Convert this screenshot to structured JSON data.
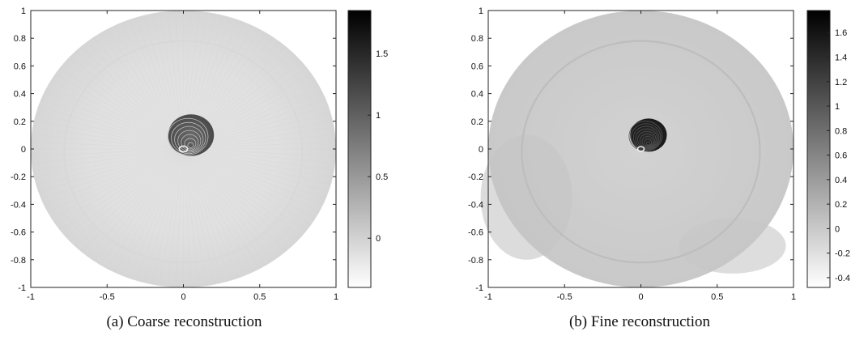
{
  "chart_data": [
    {
      "type": "heatmap",
      "caption": "(a) Coarse reconstruction",
      "xlim": [
        -1,
        1
      ],
      "ylim": [
        -1,
        1
      ],
      "x_ticks": [
        -1,
        -0.5,
        0,
        0.5,
        1
      ],
      "x_tick_labels": [
        "-1",
        "-0.5",
        "0",
        "0.5",
        "1"
      ],
      "y_ticks": [
        -1,
        -0.8,
        -0.6,
        -0.4,
        -0.2,
        0,
        0.2,
        0.4,
        0.6,
        0.8,
        1
      ],
      "y_tick_labels": [
        "-1",
        "-0.8",
        "-0.6",
        "-0.4",
        "-0.2",
        "0",
        "0.2",
        "0.4",
        "0.6",
        "0.8",
        "1"
      ],
      "domain": {
        "shape": "disk",
        "center": [
          0,
          0
        ],
        "radius": 1
      },
      "inclusion": {
        "center": [
          0.05,
          0.1
        ],
        "radius": 0.15
      },
      "colormap": "gray-reversed",
      "colorbar": {
        "range": [
          -0.4,
          1.85
        ],
        "ticks": [
          0,
          0.5,
          1,
          1.5
        ],
        "tick_labels": [
          "0",
          "0.5",
          "1",
          "1.5"
        ]
      }
    },
    {
      "type": "heatmap",
      "caption": "(b) Fine reconstruction",
      "xlim": [
        -1,
        1
      ],
      "ylim": [
        -1,
        1
      ],
      "x_ticks": [
        -1,
        -0.5,
        0,
        0.5,
        1
      ],
      "x_tick_labels": [
        "-1",
        "-0.5",
        "0",
        "0.5",
        "1"
      ],
      "y_ticks": [
        -1,
        -0.8,
        -0.6,
        -0.4,
        -0.2,
        0,
        0.2,
        0.4,
        0.6,
        0.8,
        1
      ],
      "y_tick_labels": [
        "-1",
        "-0.8",
        "-0.6",
        "-0.4",
        "-0.2",
        "0",
        "0.2",
        "0.4",
        "0.6",
        "0.8",
        "1"
      ],
      "domain": {
        "shape": "disk",
        "center": [
          0,
          0
        ],
        "radius": 1
      },
      "inclusion": {
        "center": [
          0.05,
          0.1
        ],
        "radius": 0.12
      },
      "colormap": "gray-reversed",
      "colorbar": {
        "range": [
          -0.48,
          1.78
        ],
        "ticks": [
          -0.4,
          -0.2,
          0,
          0.2,
          0.4,
          0.6,
          0.8,
          1,
          1.2,
          1.4,
          1.6
        ],
        "tick_labels": [
          "-0.4",
          "-0.2",
          "0",
          "0.2",
          "0.4",
          "0.6",
          "0.8",
          "1",
          "1.2",
          "1.4",
          "1.6"
        ]
      }
    }
  ]
}
